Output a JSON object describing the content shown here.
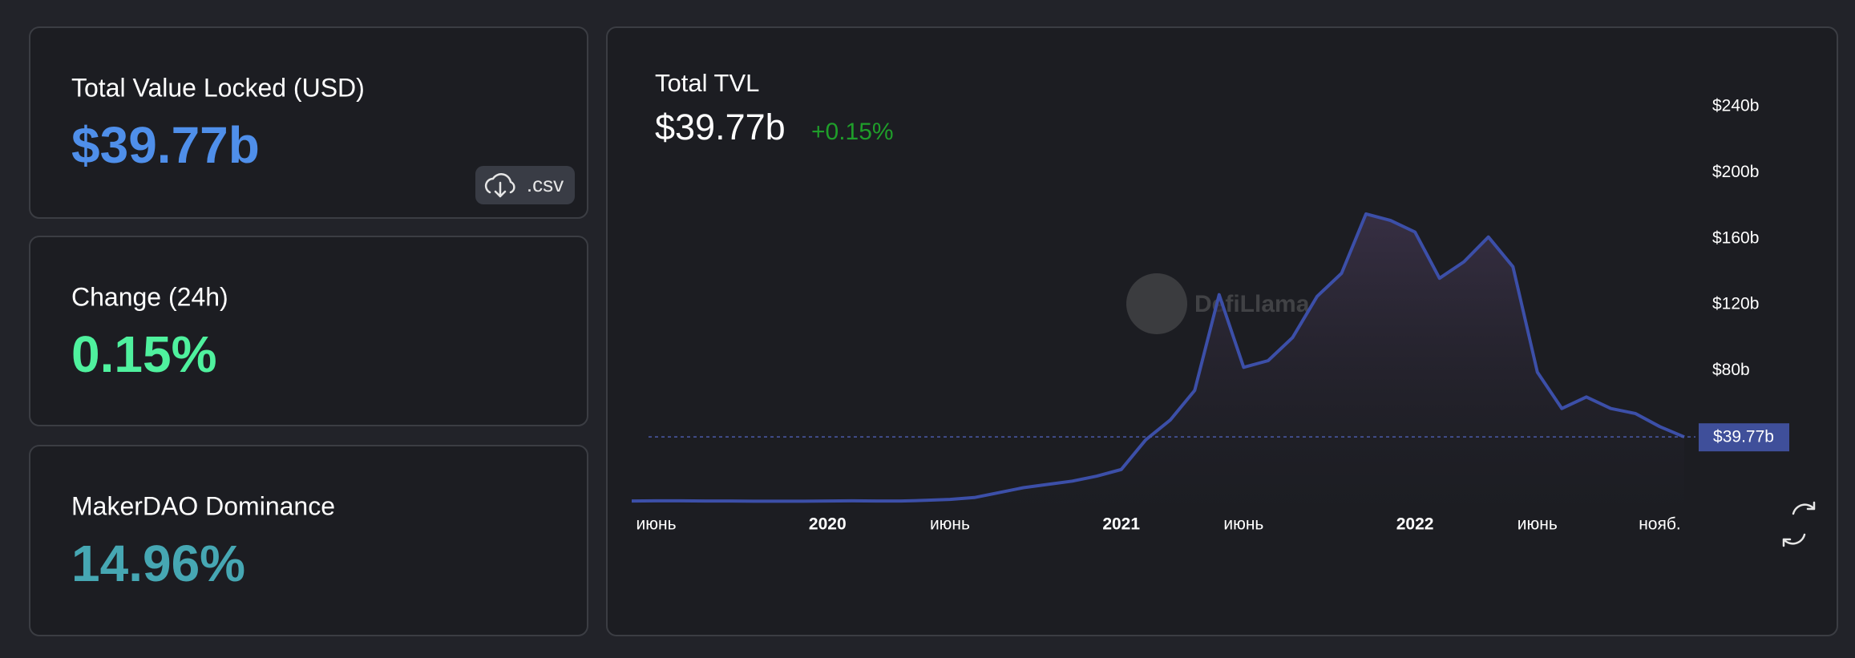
{
  "cards": [
    {
      "label": "Total Value Locked (USD)",
      "value": "$39.77b",
      "color": "#4f8fea"
    },
    {
      "label": "Change (24h)",
      "value": "0.15%",
      "color": "#4ff19e"
    },
    {
      "label": "MakerDAO Dominance",
      "value": "14.96%",
      "color": "#46a7b3"
    }
  ],
  "csv_button": ".csv",
  "chart_data": {
    "type": "area",
    "title": "Total TVL",
    "headline_value": "$39.77b",
    "headline_change": "+0.15%",
    "watermark": "DefiLlama",
    "color": "#3c4fa8",
    "x": [
      "2019-05",
      "2019-06",
      "2019-07",
      "2019-08",
      "2019-09",
      "2019-10",
      "2019-11",
      "2019-12",
      "2020-01",
      "2020-02",
      "2020-03",
      "2020-04",
      "2020-05",
      "2020-06",
      "2020-07",
      "2020-08",
      "2020-09",
      "2020-10",
      "2020-11",
      "2020-12",
      "2021-01",
      "2021-02",
      "2021-03",
      "2021-04",
      "2021-05",
      "2021-06",
      "2021-07",
      "2021-08",
      "2021-09",
      "2021-10",
      "2021-11",
      "2021-12",
      "2022-01",
      "2022-02",
      "2022-03",
      "2022-04",
      "2022-05",
      "2022-06",
      "2022-07",
      "2022-08",
      "2022-09",
      "2022-10",
      "2022-11",
      "2022-12"
    ],
    "values": [
      0.9,
      1.0,
      1.0,
      0.9,
      0.9,
      0.8,
      0.8,
      0.8,
      0.9,
      1.0,
      0.9,
      0.9,
      1.3,
      1.9,
      3,
      6,
      9,
      11,
      13,
      16,
      20,
      38,
      50,
      68,
      126,
      82,
      86,
      100,
      125,
      139,
      175,
      171,
      164,
      136,
      146,
      161,
      143,
      79,
      57,
      64,
      57,
      54,
      46,
      39.77
    ],
    "xlim": [
      "2019-05",
      "2022-12"
    ],
    "xticks": [
      {
        "value": "2019-06",
        "label": "июнь"
      },
      {
        "value": "2020-01",
        "label": "2020"
      },
      {
        "value": "2020-06",
        "label": "июнь"
      },
      {
        "value": "2021-01",
        "label": "2021"
      },
      {
        "value": "2021-06",
        "label": "июнь"
      },
      {
        "value": "2022-01",
        "label": "2022"
      },
      {
        "value": "2022-06",
        "label": "июнь"
      },
      {
        "value": "2022-11",
        "label": "нояб."
      }
    ],
    "ylim": [
      0,
      260
    ],
    "yticks": [
      {
        "value": 80,
        "label": "$80b"
      },
      {
        "value": 120,
        "label": "$120b"
      },
      {
        "value": 160,
        "label": "$160b"
      },
      {
        "value": 200,
        "label": "$200b"
      },
      {
        "value": 240,
        "label": "$240b"
      }
    ],
    "current_value": {
      "value": 39.77,
      "label": "$39.77b"
    }
  }
}
